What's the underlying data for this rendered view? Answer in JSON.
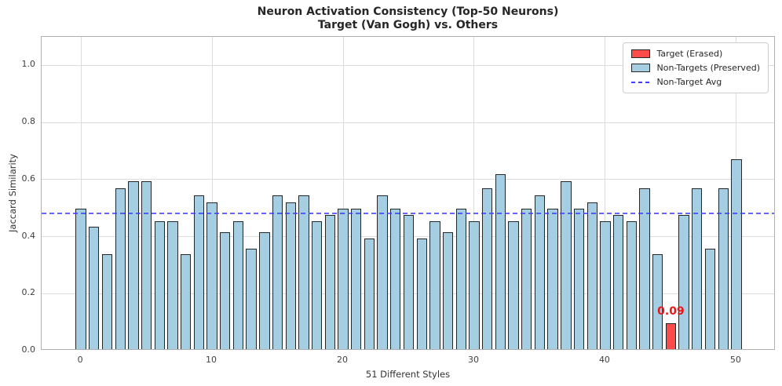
{
  "chart": {
    "title_line1": "Neuron Activation Consistency (Top-50 Neurons)",
    "title_line2": "Target (Van Gogh) vs. Others"
  },
  "chart_data": {
    "type": "bar",
    "title_lines": [
      "Neuron Activation Consistency (Top-50 Neurons)",
      "Target (Van Gogh) vs. Others"
    ],
    "xlabel": "51 Different Styles",
    "ylabel": "Jaccard Similarity",
    "x": [
      0,
      1,
      2,
      3,
      4,
      5,
      6,
      7,
      8,
      9,
      10,
      11,
      12,
      13,
      14,
      15,
      16,
      17,
      18,
      19,
      20,
      21,
      22,
      23,
      24,
      25,
      26,
      27,
      28,
      29,
      30,
      31,
      32,
      33,
      34,
      35,
      36,
      37,
      38,
      39,
      40,
      41,
      42,
      43,
      44,
      45,
      46,
      47,
      48,
      49,
      50
    ],
    "values": [
      0.4925,
      0.4286,
      0.3333,
      0.5625,
      0.5873,
      0.5873,
      0.4493,
      0.4493,
      0.3333,
      0.5385,
      0.5152,
      0.4085,
      0.4493,
      0.3514,
      0.4085,
      0.5385,
      0.5152,
      0.5385,
      0.4493,
      0.4706,
      0.4925,
      0.4925,
      0.3889,
      0.5385,
      0.4925,
      0.4706,
      0.3889,
      0.4493,
      0.4085,
      0.4925,
      0.4493,
      0.5625,
      0.6129,
      0.4493,
      0.4925,
      0.5385,
      0.4925,
      0.5873,
      0.4925,
      0.5152,
      0.4493,
      0.4706,
      0.4493,
      0.5625,
      0.3333,
      0.09,
      0.4706,
      0.5625,
      0.3514,
      0.5625,
      0.6667
    ],
    "target_index": 45,
    "annotation": {
      "text": "0.09",
      "bar_index": 45
    },
    "avg_line": {
      "value": 0.482,
      "label": "Non-Target Avg"
    },
    "ylim": [
      0,
      1.1
    ],
    "xlim": [
      -3,
      53
    ],
    "yticks": [
      "0.0",
      "0.2",
      "0.4",
      "0.6",
      "0.8",
      "1.0"
    ],
    "ytick_values": [
      0.0,
      0.2,
      0.4,
      0.6,
      0.8,
      1.0
    ],
    "xticks": [
      "0",
      "10",
      "20",
      "30",
      "40",
      "50"
    ],
    "xtick_values": [
      0,
      10,
      20,
      30,
      40,
      50
    ],
    "grid": true,
    "legend": {
      "position": "upper right",
      "entries": [
        {
          "label": "Target (Erased)",
          "type": "patch",
          "color": "#fb4b4b"
        },
        {
          "label": "Non-Targets (Preserved)",
          "type": "patch",
          "color": "#a6cee3"
        },
        {
          "label": "Non-Target Avg",
          "type": "dashed-line",
          "color": "#3e3eff"
        }
      ]
    },
    "colors": {
      "target_bar": "#fb4b4b",
      "nontarget_bar": "#a6cee3",
      "bar_edge": "#262626",
      "avg_line": "#3e3eff",
      "annotation": "#e51717",
      "grid": "#dcdcdc",
      "spine": "#b0b0b0"
    }
  }
}
